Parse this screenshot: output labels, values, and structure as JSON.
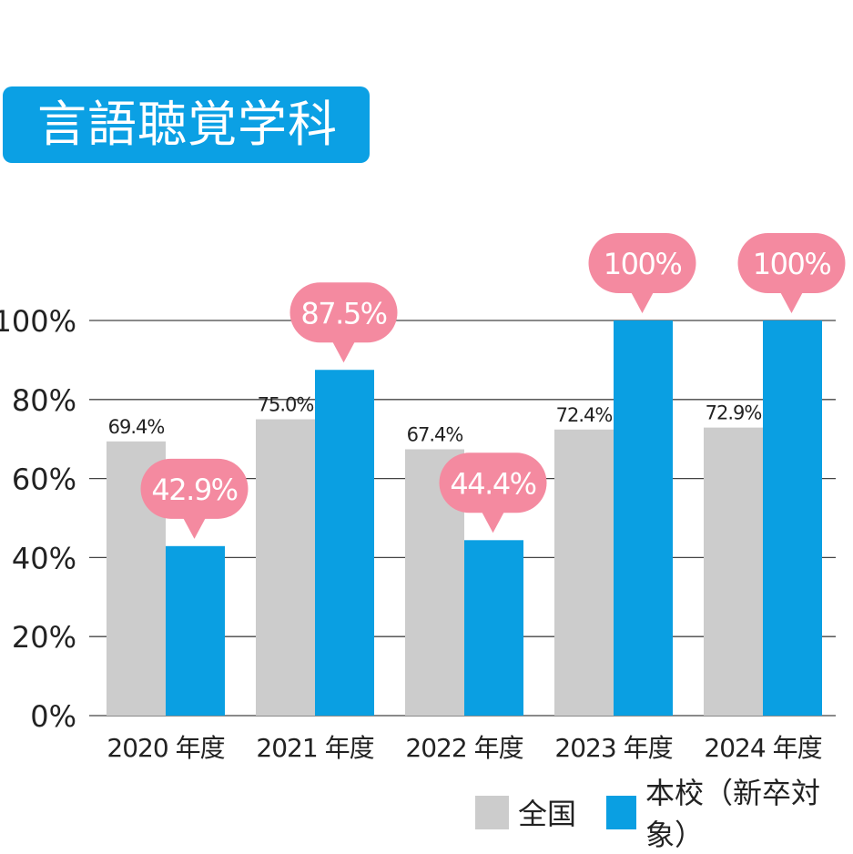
{
  "title": "言語聴覚学科",
  "colors": {
    "title_bg": "#0ba0e4",
    "national": "#cccccc",
    "school": "#0a9fe2",
    "bubble": "#f48aa0",
    "grid": "#444444"
  },
  "chart_data": {
    "type": "bar",
    "categories": [
      "2020 年度",
      "2021 年度",
      "2022 年度",
      "2023 年度",
      "2024 年度"
    ],
    "series": [
      {
        "name": "全国",
        "values": [
          69.4,
          75.0,
          67.4,
          72.4,
          72.9
        ],
        "labels": [
          "69.4%",
          "75.0%",
          "67.4%",
          "72.4%",
          "72.9%"
        ]
      },
      {
        "name": "本校（新卒対象）",
        "values": [
          42.9,
          87.5,
          44.4,
          100,
          100
        ],
        "labels": [
          "42.9%",
          "87.5%",
          "44.4%",
          "100%",
          "100%"
        ]
      }
    ],
    "ylim": [
      0,
      100
    ],
    "yticks": [
      0,
      20,
      40,
      60,
      80,
      100
    ],
    "ytick_labels": [
      "0%",
      "20%",
      "40%",
      "60%",
      "80%",
      "100%"
    ],
    "grid": true,
    "legend": "bottom-right"
  }
}
